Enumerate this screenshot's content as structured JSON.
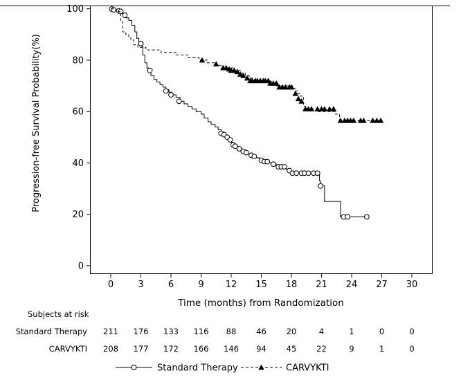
{
  "chart_data": {
    "type": "line",
    "title": "",
    "xlabel": "Time (months) from Randomization",
    "ylabel": "Progression-free Survival Probability(%)",
    "xlim": [
      -2,
      32
    ],
    "ylim": [
      -3,
      101
    ],
    "x_ticks": [
      0,
      3,
      6,
      9,
      12,
      15,
      18,
      21,
      24,
      27,
      30
    ],
    "y_ticks": [
      0,
      20,
      40,
      60,
      80,
      100
    ],
    "grid": false,
    "legend_position": "bottom",
    "series": [
      {
        "name": "Standard Therapy",
        "step": [
          [
            0,
            100
          ],
          [
            0.2,
            99.8
          ],
          [
            0.5,
            99.6
          ],
          [
            0.7,
            99.2
          ],
          [
            0.9,
            98.8
          ],
          [
            1.0,
            98.5
          ],
          [
            1.2,
            97.8
          ],
          [
            1.5,
            96.5
          ],
          [
            1.8,
            95.5
          ],
          [
            2.1,
            93.5
          ],
          [
            2.4,
            91
          ],
          [
            2.6,
            88.5
          ],
          [
            2.8,
            87
          ],
          [
            3.0,
            85.5
          ],
          [
            3.2,
            82
          ],
          [
            3.4,
            79
          ],
          [
            3.6,
            77
          ],
          [
            3.8,
            75.5
          ],
          [
            4.0,
            74
          ],
          [
            4.3,
            72.5
          ],
          [
            4.6,
            71.5
          ],
          [
            4.9,
            70.5
          ],
          [
            5.2,
            69.5
          ],
          [
            5.5,
            68.5
          ],
          [
            5.8,
            67.5
          ],
          [
            6.1,
            66.5
          ],
          [
            6.5,
            65.5
          ],
          [
            6.9,
            64
          ],
          [
            7.3,
            63
          ],
          [
            7.7,
            62
          ],
          [
            8.1,
            61
          ],
          [
            8.5,
            60
          ],
          [
            9.0,
            59
          ],
          [
            9.3,
            57.5
          ],
          [
            9.7,
            56
          ],
          [
            10.0,
            55
          ],
          [
            10.4,
            54
          ],
          [
            10.7,
            53
          ],
          [
            11.0,
            52
          ],
          [
            11.3,
            51
          ],
          [
            11.6,
            50
          ],
          [
            11.8,
            49
          ],
          [
            12.0,
            48
          ],
          [
            12.2,
            47
          ],
          [
            12.5,
            46
          ],
          [
            12.8,
            45.5
          ],
          [
            13.1,
            45
          ],
          [
            13.4,
            44
          ],
          [
            13.7,
            43.5
          ],
          [
            14.1,
            42.5
          ],
          [
            14.5,
            42
          ],
          [
            14.8,
            41
          ],
          [
            15.2,
            40.5
          ],
          [
            15.8,
            40
          ],
          [
            16.2,
            39.5
          ],
          [
            16.5,
            38.5
          ],
          [
            17.0,
            38
          ],
          [
            17.5,
            37.5
          ],
          [
            17.9,
            36.5
          ],
          [
            18.2,
            36
          ],
          [
            20.8,
            33
          ],
          [
            20.9,
            31
          ],
          [
            21.3,
            25
          ],
          [
            22.9,
            19
          ],
          [
            25.5,
            19
          ]
        ],
        "censor": [
          [
            0.1,
            99.9
          ],
          [
            0.3,
            99.6
          ],
          [
            0.8,
            99.2
          ],
          [
            1.0,
            99
          ],
          [
            1.4,
            97.5
          ],
          [
            3.0,
            86.5
          ],
          [
            3.9,
            76
          ],
          [
            5.5,
            68
          ],
          [
            6.0,
            66.5
          ],
          [
            6.8,
            64
          ],
          [
            11.0,
            51.5
          ],
          [
            11.3,
            51
          ],
          [
            11.6,
            50
          ],
          [
            11.9,
            49
          ],
          [
            12.2,
            47
          ],
          [
            12.4,
            46.5
          ],
          [
            12.8,
            45.5
          ],
          [
            13.2,
            44.5
          ],
          [
            13.5,
            44
          ],
          [
            14.0,
            43
          ],
          [
            14.3,
            42.5
          ],
          [
            15.0,
            41
          ],
          [
            15.3,
            40.5
          ],
          [
            15.6,
            40.5
          ],
          [
            16.2,
            39.5
          ],
          [
            16.7,
            38.5
          ],
          [
            17.0,
            38.5
          ],
          [
            17.3,
            38.5
          ],
          [
            17.8,
            37
          ],
          [
            18.1,
            36
          ],
          [
            18.5,
            36
          ],
          [
            19.0,
            36
          ],
          [
            19.3,
            36
          ],
          [
            19.7,
            36
          ],
          [
            20.2,
            36
          ],
          [
            20.6,
            36
          ],
          [
            20.9,
            31
          ],
          [
            23.2,
            19
          ],
          [
            23.6,
            19
          ],
          [
            25.5,
            19
          ]
        ]
      },
      {
        "name": "CARVYKTI",
        "step": [
          [
            0,
            100
          ],
          [
            0.5,
            99
          ],
          [
            0.9,
            98
          ],
          [
            1.0,
            95
          ],
          [
            1.2,
            91
          ],
          [
            1.5,
            90
          ],
          [
            1.8,
            89
          ],
          [
            2.0,
            88
          ],
          [
            2.3,
            86
          ],
          [
            2.7,
            85
          ],
          [
            3.5,
            84
          ],
          [
            5.0,
            83
          ],
          [
            6.5,
            82
          ],
          [
            7.7,
            81
          ],
          [
            8.8,
            80
          ],
          [
            9.6,
            79
          ],
          [
            10.3,
            78
          ],
          [
            11.0,
            77
          ],
          [
            12.2,
            76
          ],
          [
            12.9,
            75
          ],
          [
            13.4,
            74
          ],
          [
            13.8,
            73
          ],
          [
            14.2,
            72
          ],
          [
            16.0,
            71
          ],
          [
            16.5,
            70
          ],
          [
            18.2,
            69
          ],
          [
            18.4,
            68
          ],
          [
            18.6,
            67
          ],
          [
            18.8,
            66
          ],
          [
            19.2,
            62
          ],
          [
            19.4,
            61
          ],
          [
            20.6,
            60
          ],
          [
            22.4,
            59
          ],
          [
            22.8,
            56.5
          ],
          [
            27.0,
            56.5
          ]
        ],
        "censor": [
          [
            9.1,
            80
          ],
          [
            10.5,
            78.5
          ],
          [
            11.2,
            77
          ],
          [
            11.5,
            77
          ],
          [
            11.8,
            76.5
          ],
          [
            12.0,
            76
          ],
          [
            12.3,
            76
          ],
          [
            12.6,
            75.5
          ],
          [
            12.9,
            74.5
          ],
          [
            13.2,
            74
          ],
          [
            13.6,
            73
          ],
          [
            13.9,
            72
          ],
          [
            14.1,
            72
          ],
          [
            14.4,
            72
          ],
          [
            14.6,
            72
          ],
          [
            14.9,
            72
          ],
          [
            15.2,
            72
          ],
          [
            15.4,
            72
          ],
          [
            15.7,
            72
          ],
          [
            15.9,
            71
          ],
          [
            16.2,
            71
          ],
          [
            16.5,
            71
          ],
          [
            16.8,
            69.5
          ],
          [
            17.1,
            69.5
          ],
          [
            17.4,
            69.5
          ],
          [
            17.8,
            69.5
          ],
          [
            18.0,
            69.5
          ],
          [
            18.4,
            67
          ],
          [
            18.7,
            65
          ],
          [
            19.0,
            64
          ],
          [
            19.4,
            61
          ],
          [
            19.7,
            61
          ],
          [
            20.0,
            61
          ],
          [
            20.6,
            61
          ],
          [
            21.0,
            61
          ],
          [
            21.3,
            61
          ],
          [
            21.8,
            61
          ],
          [
            22.2,
            61
          ],
          [
            22.9,
            56.5
          ],
          [
            23.3,
            56.5
          ],
          [
            23.6,
            56.5
          ],
          [
            23.9,
            56.5
          ],
          [
            24.2,
            56.5
          ],
          [
            24.9,
            56.5
          ],
          [
            25.2,
            56.5
          ],
          [
            26.1,
            56.5
          ],
          [
            26.5,
            56.5
          ],
          [
            26.9,
            56.5
          ]
        ]
      }
    ],
    "risk_table": {
      "header": "Subjects at risk",
      "times": [
        0,
        3,
        6,
        9,
        12,
        15,
        18,
        21,
        24,
        27,
        30
      ],
      "rows": [
        {
          "label": "Standard Therapy",
          "values": [
            211,
            176,
            133,
            116,
            88,
            46,
            20,
            4,
            1,
            0,
            0
          ]
        },
        {
          "label": "CARVYKTI",
          "values": [
            208,
            177,
            172,
            166,
            146,
            94,
            45,
            22,
            9,
            1,
            0
          ]
        }
      ]
    },
    "legend": [
      "Standard Therapy",
      "CARVYKTI"
    ]
  }
}
